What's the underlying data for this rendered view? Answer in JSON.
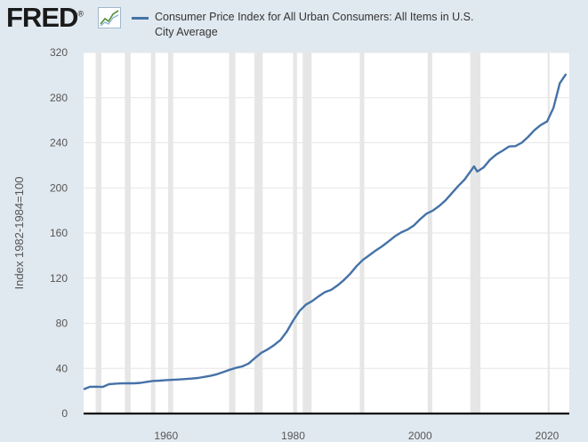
{
  "header": {
    "logo_text": "FRED",
    "logo_registered": "®",
    "logo_icon": "fred-line-chart-icon"
  },
  "legend": {
    "series_label": "Consumer Price Index for All Urban Consumers: All Items in U.S. City Average",
    "swatch_color": "#4572a7"
  },
  "chart_data": {
    "type": "line",
    "title": "",
    "xlabel": "",
    "ylabel": "Index 1982-1984=100",
    "xlim": [
      1947,
      2023.5
    ],
    "ylim": [
      0,
      320
    ],
    "x_ticks": [
      1960,
      1980,
      2000,
      2020
    ],
    "y_ticks": [
      0,
      40,
      80,
      120,
      160,
      200,
      240,
      280,
      320
    ],
    "grid": "horizontal",
    "legend_position": "top",
    "line_color": "#4572a7",
    "recession_shading_color": "#e6e6e6",
    "recessions": [
      [
        1948.9,
        1949.8
      ],
      [
        1953.5,
        1954.4
      ],
      [
        1957.6,
        1958.3
      ],
      [
        1960.3,
        1961.1
      ],
      [
        1969.9,
        1970.9
      ],
      [
        1973.9,
        1975.2
      ],
      [
        1980.0,
        1980.6
      ],
      [
        1981.5,
        1982.9
      ],
      [
        1990.5,
        1991.2
      ],
      [
        2001.2,
        2001.9
      ],
      [
        2007.9,
        2009.5
      ],
      [
        2020.1,
        2020.4
      ]
    ],
    "series": [
      {
        "name": "Consumer Price Index for All Urban Consumers: All Items in U.S. City Average",
        "x": [
          1947,
          1948,
          1949,
          1950,
          1951,
          1952,
          1953,
          1954,
          1955,
          1956,
          1957,
          1958,
          1959,
          1960,
          1961,
          1962,
          1963,
          1964,
          1965,
          1966,
          1967,
          1968,
          1969,
          1970,
          1971,
          1972,
          1973,
          1974,
          1975,
          1976,
          1977,
          1978,
          1979,
          1980,
          1981,
          1982,
          1983,
          1984,
          1985,
          1986,
          1987,
          1988,
          1989,
          1990,
          1991,
          1992,
          1993,
          1994,
          1995,
          1996,
          1997,
          1998,
          1999,
          2000,
          2001,
          2002,
          2003,
          2004,
          2005,
          2006,
          2007,
          2008.5,
          2009,
          2010,
          2011,
          2012,
          2013,
          2014,
          2015,
          2016,
          2017,
          2018,
          2019,
          2020,
          2021,
          2022,
          2023
        ],
        "values": [
          21.5,
          23.7,
          23.8,
          23.6,
          26.0,
          26.5,
          26.7,
          26.9,
          26.8,
          27.2,
          28.1,
          28.9,
          29.2,
          29.6,
          29.9,
          30.2,
          30.6,
          31.0,
          31.5,
          32.5,
          33.4,
          34.8,
          36.7,
          38.8,
          40.5,
          41.8,
          44.4,
          49.3,
          53.8,
          56.9,
          60.6,
          65.2,
          72.6,
          82.4,
          90.9,
          96.5,
          99.6,
          103.9,
          107.6,
          109.6,
          113.6,
          118.3,
          124.0,
          130.7,
          136.2,
          140.3,
          144.5,
          148.2,
          152.4,
          156.9,
          160.5,
          163.0,
          166.6,
          172.2,
          177.1,
          179.9,
          184.0,
          188.9,
          195.3,
          201.6,
          207.3,
          219.0,
          214.5,
          218.1,
          224.9,
          229.6,
          233.0,
          236.7,
          237.0,
          240.0,
          245.1,
          251.1,
          255.7,
          258.8,
          271.0,
          292.7,
          301.0
        ]
      }
    ]
  }
}
